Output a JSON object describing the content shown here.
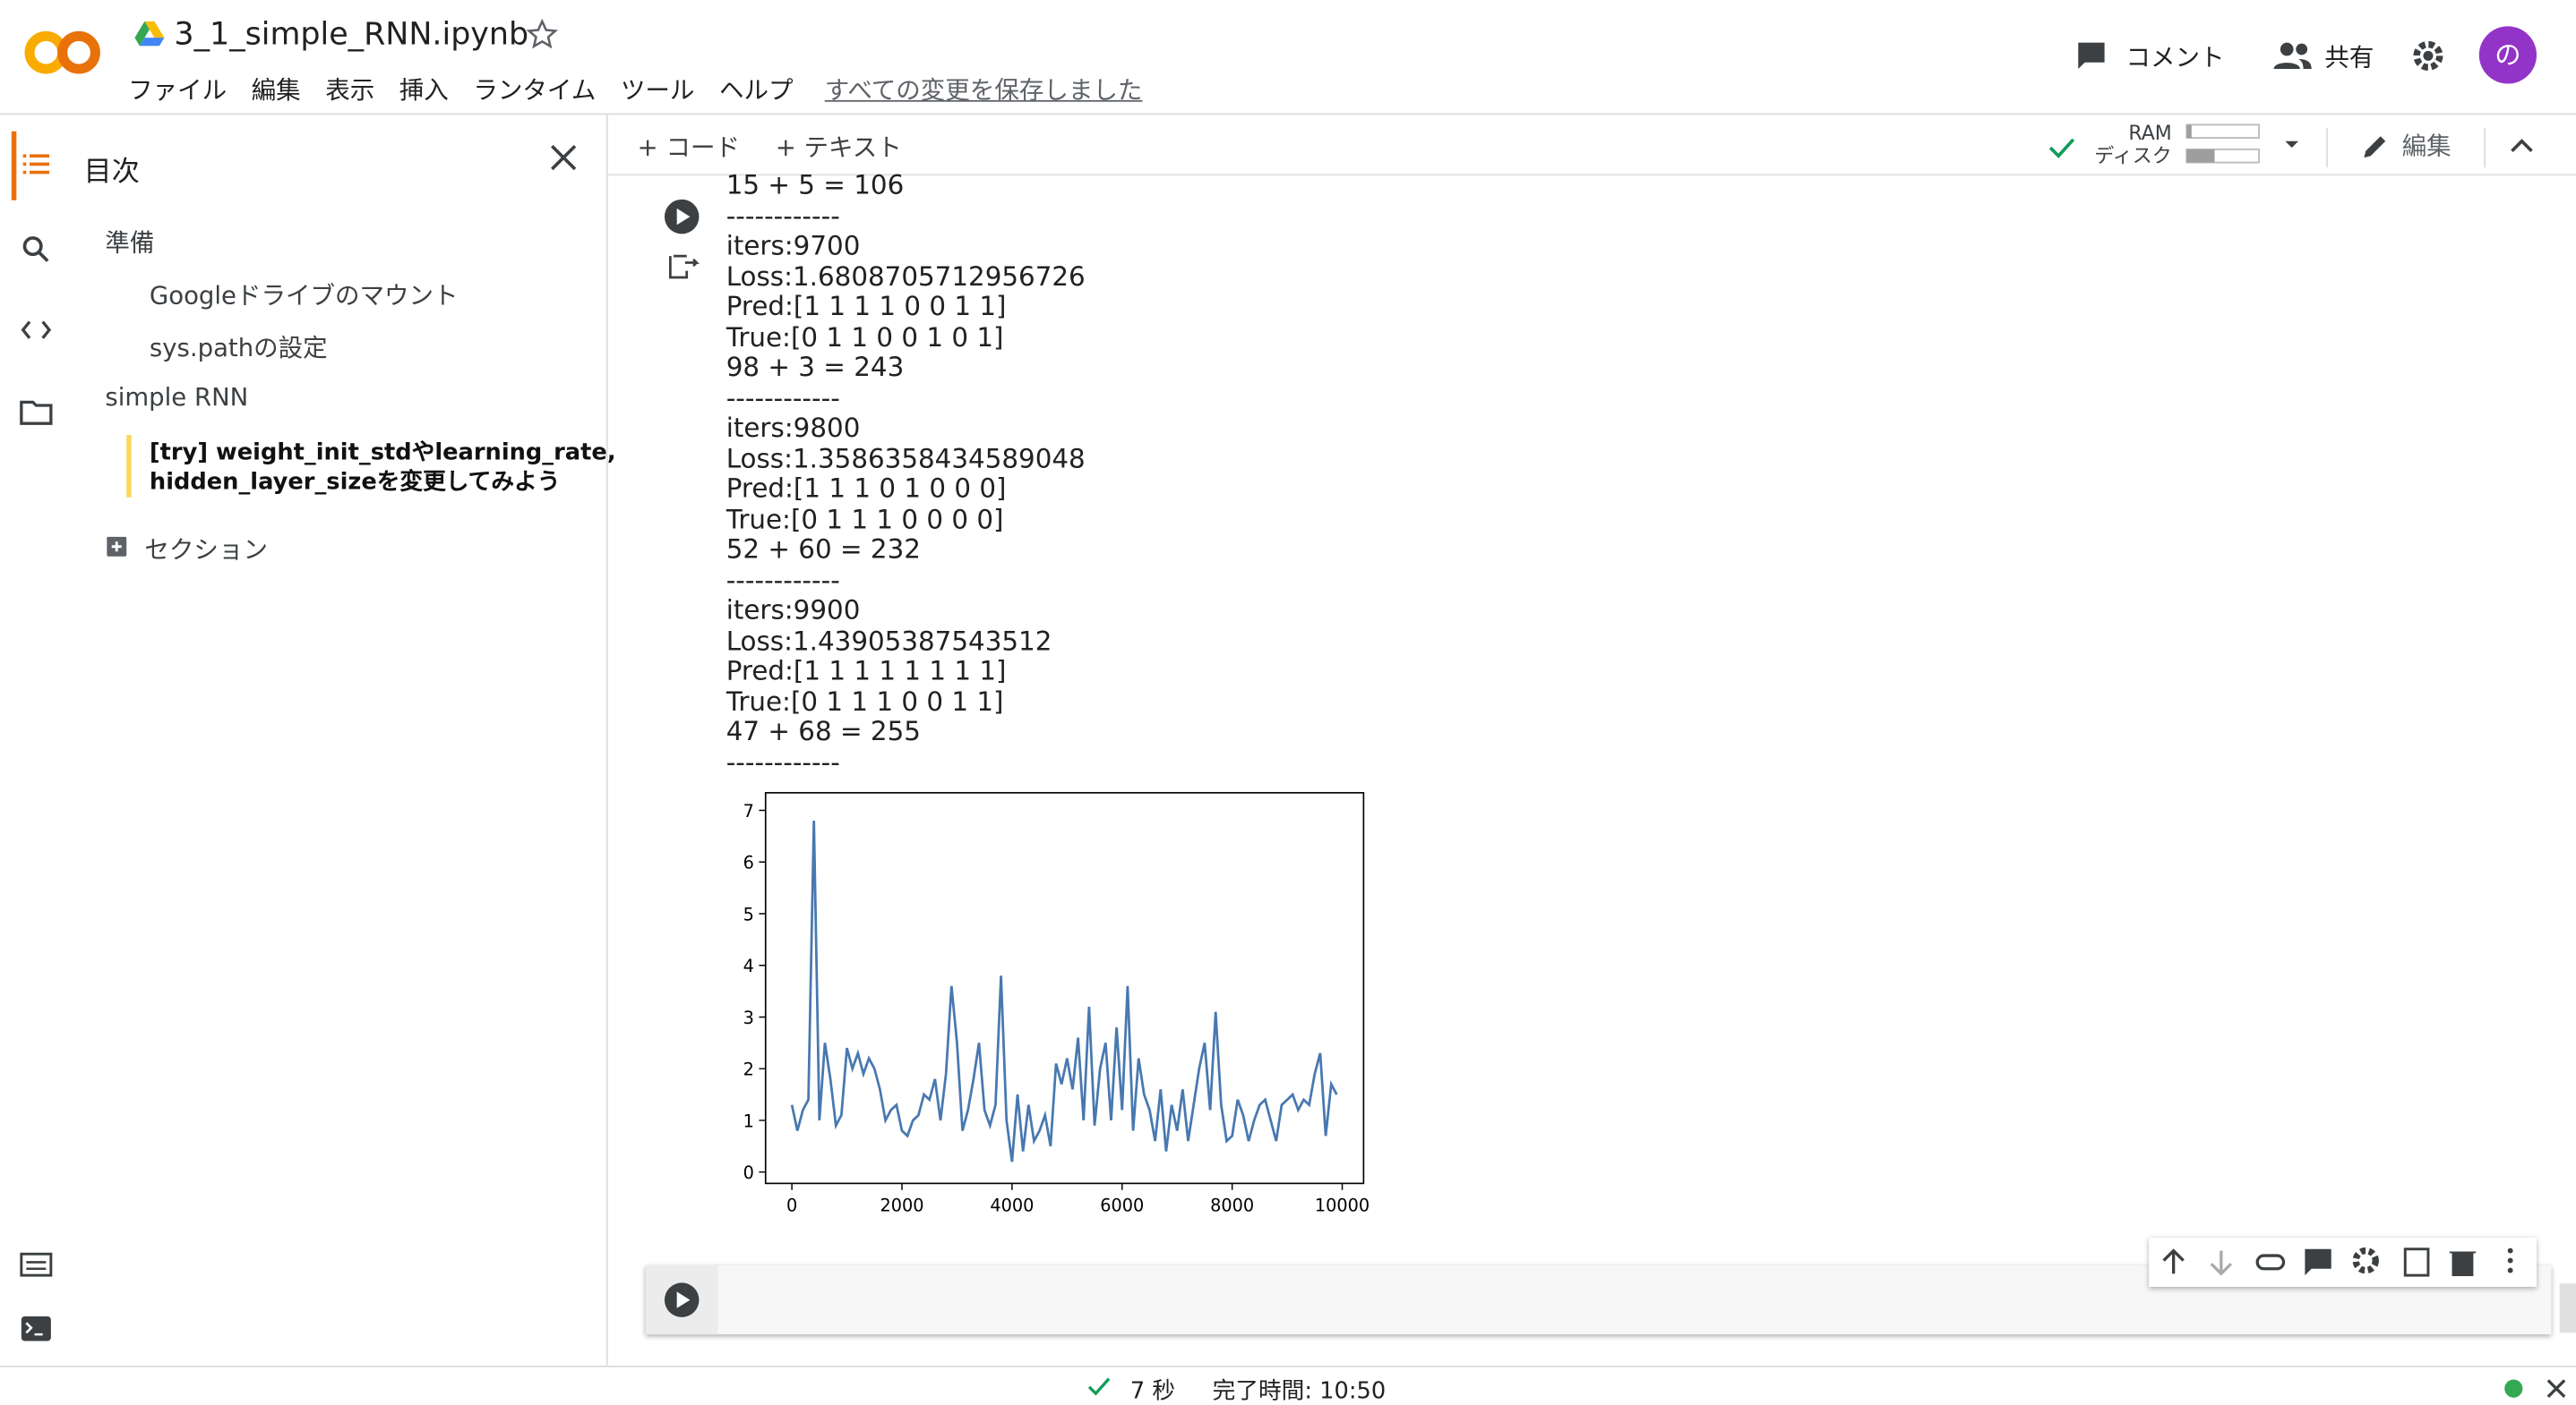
{
  "header": {
    "filename": "3_1_simple_RNN.ipynb",
    "menu": [
      "ファイル",
      "編集",
      "表示",
      "挿入",
      "ランタイム",
      "ツール",
      "ヘルプ"
    ],
    "save_status": "すべての変更を保存しました",
    "comment": "コメント",
    "share": "共有",
    "avatar": "の"
  },
  "sidebar": {
    "title": "目次",
    "items": [
      {
        "label": "準備",
        "level": 1
      },
      {
        "label": "Googleドライブのマウント",
        "level": 2
      },
      {
        "label": "sys.pathの設定",
        "level": 2
      },
      {
        "label": "simple RNN",
        "level": 1
      },
      {
        "label": "[try] weight_init_stdやlearning_rate,",
        "level": 2,
        "active": true
      },
      {
        "label": "hidden_layer_sizeを変更してみよう",
        "level": 2,
        "active": true
      }
    ],
    "add_section": "セクション"
  },
  "toolbar": {
    "add_code": "+ コード",
    "add_text": "+ テキスト",
    "ram": "RAM",
    "disk": "ディスク",
    "edit": "編集"
  },
  "output": {
    "lines": [
      "15 + 5 = 106",
      "------------",
      "iters:9700",
      "Loss:1.6808705712956726",
      "Pred:[1 1 1 1 0 0 1 1]",
      "True:[0 1 1 0 0 1 0 1]",
      "98 + 3 = 243",
      "------------",
      "iters:9800",
      "Loss:1.3586358434589048",
      "Pred:[1 1 1 0 1 0 0 0]",
      "True:[0 1 1 1 0 0 0 0]",
      "52 + 60 = 232",
      "------------",
      "iters:9900",
      "Loss:1.43905387543512",
      "Pred:[1 1 1 1 1 1 1 1]",
      "True:[0 1 1 1 0 0 1 1]",
      "47 + 68 = 255",
      "------------"
    ]
  },
  "plot": {
    "type": "line",
    "color": "#4878b0",
    "x": [
      0,
      100,
      200,
      300,
      400,
      500,
      600,
      700,
      800,
      900,
      1000,
      1100,
      1200,
      1300,
      1400,
      1500,
      1600,
      1700,
      1800,
      1900,
      2000,
      2100,
      2200,
      2300,
      2400,
      2500,
      2600,
      2700,
      2800,
      2900,
      3000,
      3100,
      3200,
      3300,
      3400,
      3500,
      3600,
      3700,
      3800,
      3900,
      4000,
      4100,
      4200,
      4300,
      4400,
      4500,
      4600,
      4700,
      4800,
      4900,
      5000,
      5100,
      5200,
      5300,
      5400,
      5500,
      5600,
      5700,
      5800,
      5900,
      6000,
      6100,
      6200,
      6300,
      6400,
      6500,
      6600,
      6700,
      6800,
      6900,
      7000,
      7100,
      7200,
      7300,
      7400,
      7500,
      7600,
      7700,
      7800,
      7900,
      8000,
      8100,
      8200,
      8300,
      8400,
      8500,
      8600,
      8700,
      8800,
      8900,
      9000,
      9100,
      9200,
      9300,
      9400,
      9500,
      9600,
      9700,
      9800,
      9900
    ],
    "values": [
      1.3,
      0.8,
      1.2,
      1.4,
      6.8,
      1.0,
      2.5,
      1.8,
      0.9,
      1.1,
      2.4,
      2.0,
      2.3,
      1.9,
      2.2,
      2.0,
      1.6,
      1.0,
      1.2,
      1.3,
      0.8,
      0.7,
      1.0,
      1.1,
      1.5,
      1.4,
      1.8,
      1.0,
      1.9,
      3.6,
      2.5,
      0.8,
      1.2,
      1.8,
      2.5,
      1.2,
      0.9,
      1.3,
      3.8,
      1.0,
      0.2,
      1.5,
      0.4,
      1.3,
      0.6,
      0.8,
      1.1,
      0.5,
      2.1,
      1.7,
      2.2,
      1.6,
      2.6,
      1.0,
      3.2,
      0.9,
      2.0,
      2.5,
      1.0,
      2.8,
      1.2,
      3.6,
      0.8,
      2.2,
      1.5,
      1.2,
      0.6,
      1.6,
      0.4,
      1.3,
      0.8,
      1.6,
      0.6,
      1.3,
      2.0,
      2.5,
      1.2,
      3.1,
      1.3,
      0.6,
      0.7,
      1.4,
      1.1,
      0.6,
      1.0,
      1.3,
      1.4,
      1.0,
      0.6,
      1.3,
      1.4,
      1.5,
      1.2,
      1.4,
      1.3,
      1.9,
      2.3,
      0.7,
      1.7,
      1.5
    ],
    "xlim": [
      -478,
      10388
    ],
    "ylim": [
      -0.22,
      7.34
    ],
    "xticks": [
      0,
      2000,
      4000,
      6000,
      8000,
      10000
    ],
    "yticks": [
      0,
      1,
      2,
      3,
      4,
      5,
      6,
      7
    ]
  },
  "status": {
    "duration": "7 秒",
    "finished": "完了時間: 10:50"
  }
}
